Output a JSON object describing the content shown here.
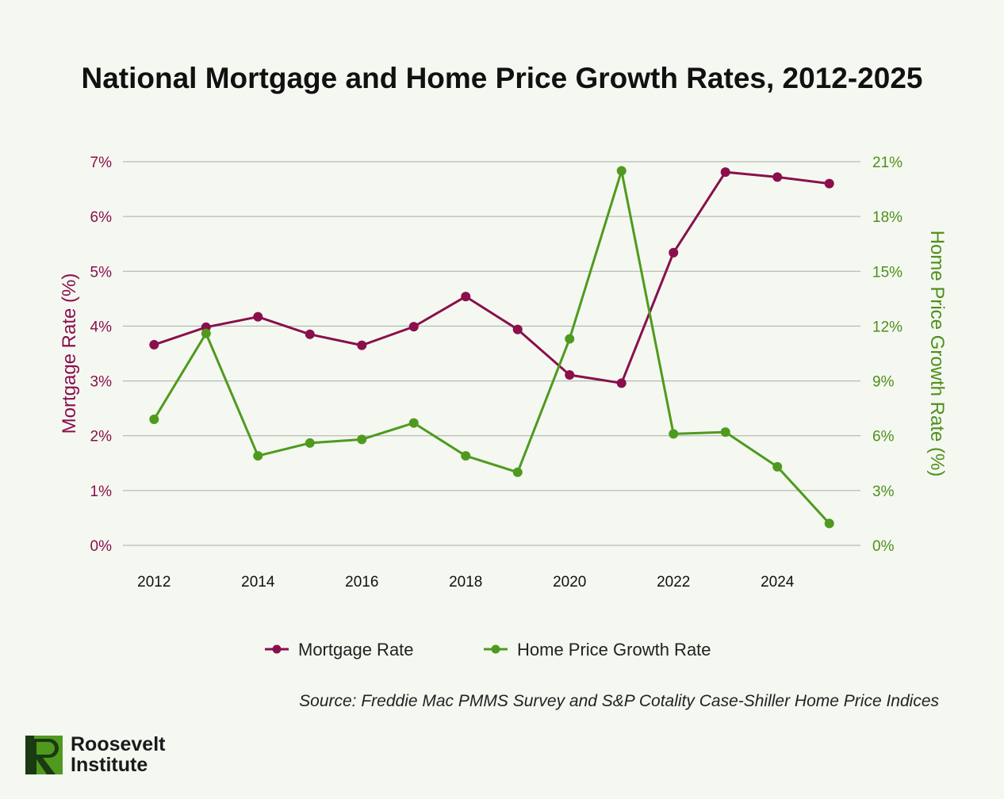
{
  "chart_data": {
    "type": "line",
    "title": "National Mortgage and Home Price Growth Rates, 2012-2025",
    "x": [
      2012,
      2013,
      2014,
      2015,
      2016,
      2017,
      2018,
      2019,
      2020,
      2021,
      2022,
      2023,
      2024,
      2025
    ],
    "x_ticks": [
      "2012",
      "2014",
      "2016",
      "2018",
      "2020",
      "2022",
      "2024"
    ],
    "series": [
      {
        "name": "Mortgage Rate",
        "axis": "left",
        "color": "#8a0f4c",
        "values": [
          3.66,
          3.98,
          4.17,
          3.85,
          3.65,
          3.99,
          4.54,
          3.94,
          3.11,
          2.96,
          5.34,
          6.81,
          6.72,
          6.6
        ]
      },
      {
        "name": "Home Price Growth Rate",
        "axis": "right",
        "color": "#4f9a1e",
        "values": [
          6.9,
          11.6,
          4.9,
          5.6,
          5.8,
          6.7,
          4.9,
          4.0,
          11.3,
          20.5,
          6.1,
          6.2,
          4.3,
          1.2
        ]
      }
    ],
    "ylabel_left": "Mortgage Rate (%)",
    "ylabel_right": "Home Price Growth Rate (%)",
    "ylim_left": [
      0,
      7
    ],
    "ylim_right": [
      0,
      21
    ],
    "yticks_left": [
      "0%",
      "1%",
      "2%",
      "3%",
      "4%",
      "5%",
      "6%",
      "7%"
    ],
    "yticks_right": [
      "0%",
      "3%",
      "6%",
      "9%",
      "12%",
      "15%",
      "18%",
      "21%"
    ],
    "grid": true,
    "legend": "bottom-center"
  },
  "source": "Source: Freddie Mac PMMS Survey and S&P Cotality Case-Shiller Home Price Indices",
  "logo": {
    "line1": "Roosevelt",
    "line2": "Institute"
  },
  "colors": {
    "background": "#f4f8f1",
    "mortgage": "#8a0f4c",
    "home_price": "#4f9a1e",
    "grid": "#a9aca7"
  }
}
